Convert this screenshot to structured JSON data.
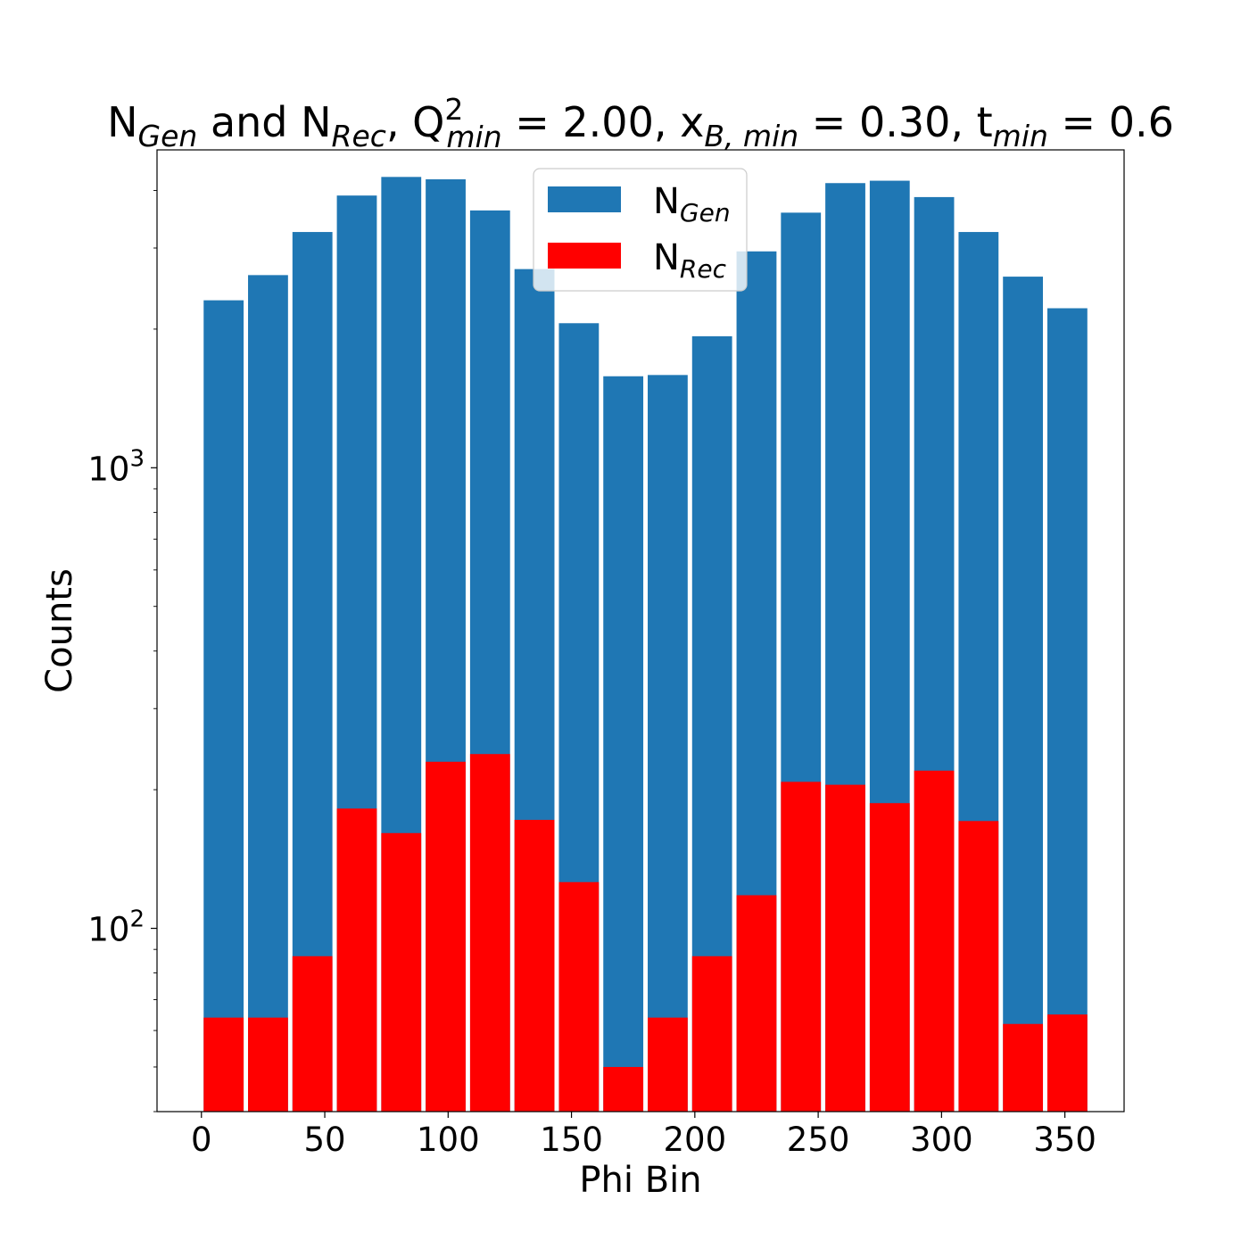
{
  "chart_data": {
    "type": "bar",
    "title_parts": [
      {
        "t": "N",
        "s": "base"
      },
      {
        "t": "Gen",
        "s": "sub"
      },
      {
        "t": " and N",
        "s": "base"
      },
      {
        "t": "Rec",
        "s": "sub"
      },
      {
        "t": ", Q",
        "s": "base"
      },
      {
        "t": "2",
        "s": "sup"
      },
      {
        "t": "min",
        "s": "sub2"
      },
      {
        "t": " = 2.00, x",
        "s": "base"
      },
      {
        "t": "B, min",
        "s": "sub"
      },
      {
        "t": " = 0.30, t",
        "s": "base"
      },
      {
        "t": "min",
        "s": "sub"
      },
      {
        "t": " = 0.6",
        "s": "base"
      }
    ],
    "xlabel": "Phi Bin",
    "ylabel": "Counts",
    "xlim": [
      -18,
      374
    ],
    "ylim": [
      40,
      4900
    ],
    "yscale": "log",
    "x_ticks": [
      0,
      50,
      100,
      150,
      200,
      250,
      300,
      350
    ],
    "y_major_ticks": [
      {
        "value": 100,
        "base": "10",
        "exp": "2"
      },
      {
        "value": 1000,
        "base": "10",
        "exp": "3"
      }
    ],
    "bin_width": 18,
    "bar_width": 16.2,
    "x": [
      9,
      27,
      45,
      63,
      81,
      99,
      117,
      135,
      153,
      171,
      189,
      207,
      225,
      243,
      261,
      279,
      297,
      315,
      333,
      351
    ],
    "series": [
      {
        "name": "N_Gen",
        "label_base": "N",
        "label_sub": "Gen",
        "color": "#1f77b4",
        "values": [
          2310,
          2620,
          3250,
          3900,
          4280,
          4230,
          3620,
          2700,
          2060,
          1580,
          1590,
          1930,
          2950,
          3580,
          4150,
          4200,
          3870,
          3250,
          2600,
          2220
        ]
      },
      {
        "name": "N_Rec",
        "label_base": "N",
        "label_sub": "Rec",
        "color": "#ff0000",
        "values": [
          64,
          64,
          87,
          182,
          161,
          230,
          239,
          172,
          126,
          50,
          64,
          87,
          118,
          208,
          205,
          187,
          220,
          171,
          62,
          65
        ]
      }
    ],
    "legend_position": "upper-center"
  }
}
